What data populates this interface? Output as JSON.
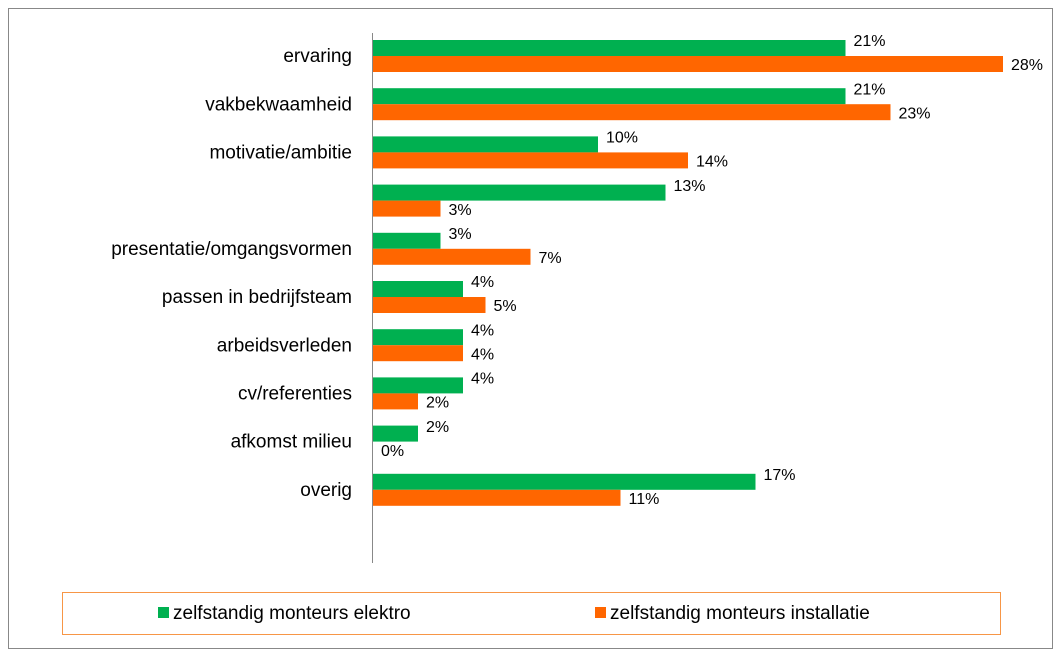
{
  "chart_data": {
    "type": "hbar",
    "categories": [
      "ervaring",
      "vakbekwaamheid",
      "motivatie/ambitie",
      null,
      "presentatie/omgangsvormen",
      "passen in bedrijfsteam",
      "arbeidsverleden",
      "cv/referenties",
      "afkomst milieu",
      "overig"
    ],
    "series": [
      {
        "name": "zelfstandig monteurs elektro",
        "color": "#00b050",
        "values": [
          21,
          21,
          10,
          13,
          3,
          4,
          4,
          4,
          2,
          17
        ],
        "value_labels": [
          "21%",
          "21%",
          "10%",
          "13%",
          "3%",
          "4%",
          "4%",
          "4%",
          "2%",
          "17%"
        ]
      },
      {
        "name": "zelfstandig monteurs installatie",
        "color": "#ff6600",
        "values": [
          28,
          23,
          14,
          3,
          7,
          5,
          4,
          2,
          0,
          11
        ],
        "value_labels": [
          "28%",
          "23%",
          "14%",
          "3%",
          "7%",
          "5%",
          "4%",
          "2%",
          "0%",
          "11%"
        ]
      }
    ],
    "legend": "bottom"
  }
}
